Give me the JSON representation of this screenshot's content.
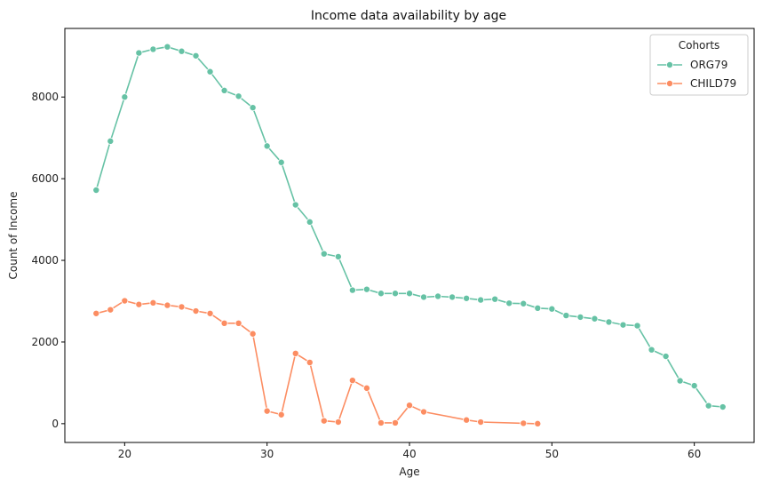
{
  "chart_data": {
    "type": "line",
    "title": "Income data availability by age",
    "xlabel": "Age",
    "ylabel": "Count of Income",
    "xlim": [
      15.8,
      64.2
    ],
    "ylim": [
      -460,
      9680
    ],
    "xticks": [
      20,
      30,
      40,
      50,
      60
    ],
    "yticks": [
      0,
      2000,
      4000,
      6000,
      8000
    ],
    "grid": false,
    "legend": {
      "title": "Cohorts",
      "placement": "top-right"
    },
    "series": [
      {
        "name": "ORG79",
        "color": "#66c2a5",
        "x": [
          18,
          19,
          20,
          21,
          22,
          23,
          24,
          25,
          26,
          27,
          28,
          29,
          30,
          31,
          32,
          33,
          34,
          35,
          36,
          37,
          38,
          39,
          40,
          41,
          42,
          43,
          44,
          45,
          46,
          47,
          48,
          49,
          50,
          51,
          52,
          53,
          54,
          55,
          56,
          57,
          58,
          59,
          60,
          61,
          62
        ],
        "y": [
          5720,
          6920,
          8000,
          9080,
          9170,
          9230,
          9120,
          9010,
          8620,
          8160,
          8020,
          7740,
          6800,
          6400,
          5360,
          4940,
          4160,
          4090,
          3270,
          3290,
          3190,
          3190,
          3190,
          3100,
          3120,
          3100,
          3070,
          3030,
          3050,
          2950,
          2940,
          2830,
          2810,
          2650,
          2610,
          2570,
          2490,
          2420,
          2400,
          1810,
          1650,
          1050,
          930,
          440,
          410
        ]
      },
      {
        "name": "CHILD79",
        "color": "#fc8d62",
        "x": [
          18,
          19,
          20,
          21,
          22,
          23,
          24,
          25,
          26,
          27,
          28,
          29,
          30,
          31,
          32,
          33,
          34,
          35,
          36,
          37,
          38,
          39,
          40,
          41,
          44,
          45,
          48,
          49
        ],
        "y": [
          2700,
          2790,
          3010,
          2920,
          2960,
          2900,
          2860,
          2760,
          2700,
          2460,
          2460,
          2200,
          310,
          220,
          1720,
          1500,
          70,
          40,
          1060,
          870,
          20,
          20,
          450,
          290,
          90,
          40,
          10,
          0
        ]
      }
    ]
  }
}
